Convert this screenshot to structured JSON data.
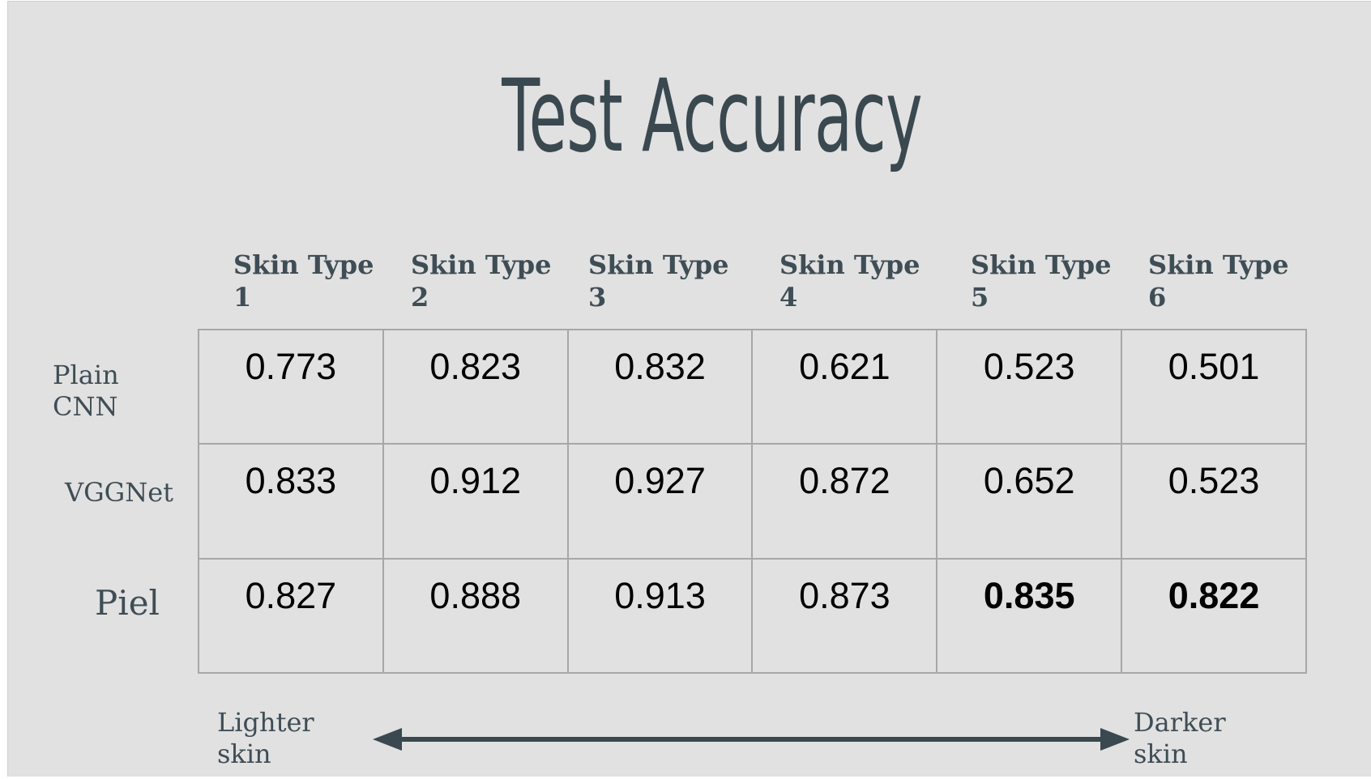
{
  "title": "Test Accuracy",
  "columns": [
    [
      "Skin Type",
      "1"
    ],
    [
      "Skin Type",
      "2"
    ],
    [
      "Skin Type",
      "3"
    ],
    [
      "Skin Type",
      "4"
    ],
    [
      "Skin Type",
      "5"
    ],
    [
      "Skin Type",
      "6"
    ]
  ],
  "rows": [
    {
      "label_lines": [
        "Plain",
        "CNN"
      ],
      "values": [
        "0.773",
        "0.823",
        "0.832",
        "0.621",
        "0.523",
        "0.501"
      ],
      "bold": [
        false,
        false,
        false,
        false,
        false,
        false
      ]
    },
    {
      "label_lines": [
        "VGGNet"
      ],
      "values": [
        "0.833",
        "0.912",
        "0.927",
        "0.872",
        "0.652",
        "0.523"
      ],
      "bold": [
        false,
        false,
        false,
        false,
        false,
        false
      ]
    },
    {
      "label_lines": [
        "Piel"
      ],
      "values": [
        "0.827",
        "0.888",
        "0.913",
        "0.873",
        "0.835",
        "0.822"
      ],
      "bold": [
        false,
        false,
        false,
        false,
        true,
        true
      ]
    }
  ],
  "scale": {
    "left_lines": [
      "Lighter",
      "skin"
    ],
    "right_lines": [
      "Darker",
      "skin"
    ]
  },
  "colors": {
    "background": "#e1e1e1",
    "text_dark": "#3a4850",
    "grid_line": "#a7a7a7",
    "values": "#000000"
  }
}
